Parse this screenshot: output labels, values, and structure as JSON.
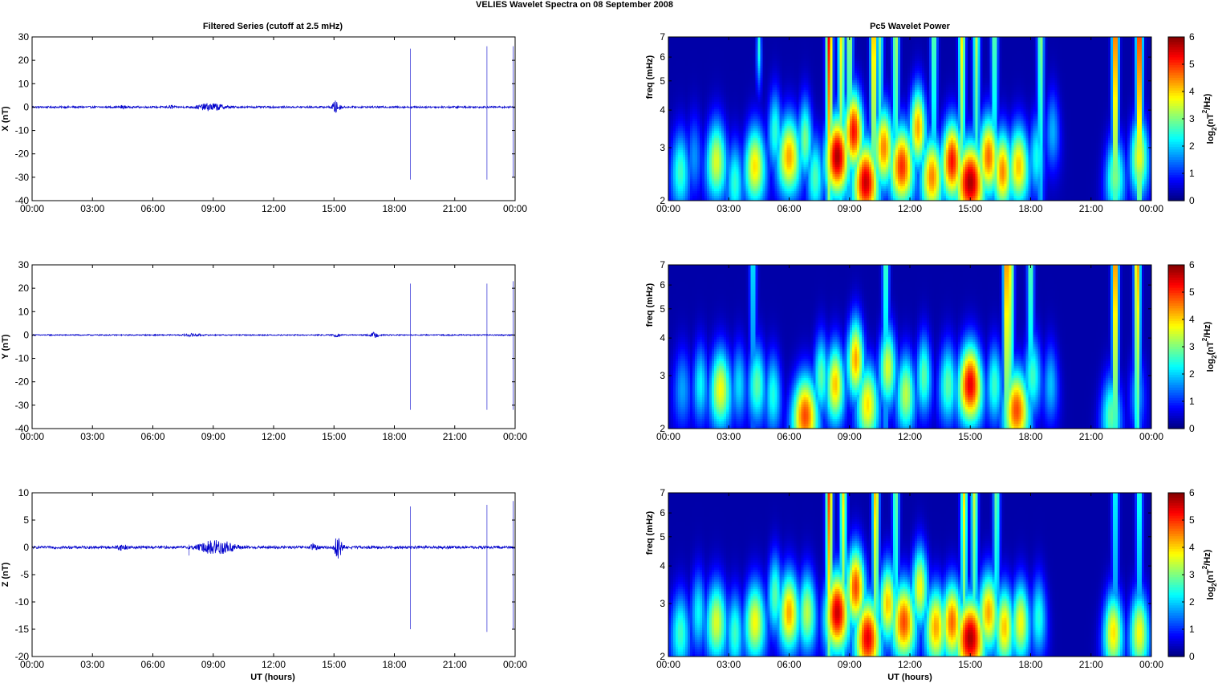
{
  "figure": {
    "title": "VELIES Wavelet Spectra on 08 September 2008",
    "left_column_title": "Filtered Series (cutoff at 2.5 mHz)",
    "right_column_title": "Pc5 Wavelet Power",
    "time_ticks": [
      "00:00",
      "03:00",
      "06:00",
      "09:00",
      "12:00",
      "15:00",
      "18:00",
      "21:00",
      "00:00"
    ],
    "x_axis_label": "UT (hours)",
    "freq_axis_label": "freq (mHz)",
    "colorbar_label_prefix": "log",
    "colorbar_label_sub": "2",
    "colorbar_label_mid": "(nT",
    "colorbar_label_sup": "2",
    "colorbar_label_suffix": "/Hz)"
  },
  "chart_data": [
    {
      "type": "line",
      "panel": "X time series",
      "ylabel": "X (nT)",
      "xlim_hours": [
        0,
        24
      ],
      "ylim": [
        -40,
        30
      ],
      "yticks": [
        30,
        20,
        10,
        0,
        -10,
        -20,
        -30,
        -40
      ],
      "line_color": "#0000cc",
      "baseline": 0,
      "noise_amplitude_nT": 0.4,
      "bursts": [
        {
          "center_hour": 4.5,
          "width_hours": 0.3,
          "amplitude_nT": 0.6
        },
        {
          "center_hour": 6.9,
          "width_hours": 0.3,
          "amplitude_nT": 0.6
        },
        {
          "center_hour": 8.9,
          "width_hours": 1.3,
          "amplitude_nT": 1.4
        },
        {
          "center_hour": 15.1,
          "width_hours": 0.4,
          "amplitude_nT": 2.5
        }
      ],
      "spikes": [
        {
          "hour": 18.8,
          "min": -31,
          "max": 25
        },
        {
          "hour": 22.6,
          "min": -31,
          "max": 26
        },
        {
          "hour": 23.9,
          "min": -30,
          "max": 26
        }
      ]
    },
    {
      "type": "line",
      "panel": "Y time series",
      "ylabel": "Y (nT)",
      "xlim_hours": [
        0,
        24
      ],
      "ylim": [
        -40,
        30
      ],
      "yticks": [
        30,
        20,
        10,
        0,
        -10,
        -20,
        -30,
        -40
      ],
      "line_color": "#0000cc",
      "baseline": 0,
      "noise_amplitude_nT": 0.25,
      "bursts": [
        {
          "center_hour": 8.0,
          "width_hours": 0.8,
          "amplitude_nT": 0.5
        },
        {
          "center_hour": 15.1,
          "width_hours": 0.3,
          "amplitude_nT": 0.8
        },
        {
          "center_hour": 17.0,
          "width_hours": 0.4,
          "amplitude_nT": 1.0
        }
      ],
      "spikes": [
        {
          "hour": 18.8,
          "min": -32,
          "max": 22
        },
        {
          "hour": 22.6,
          "min": -32,
          "max": 22
        },
        {
          "hour": 23.9,
          "min": -32,
          "max": 23
        }
      ]
    },
    {
      "type": "line",
      "panel": "Z time series",
      "ylabel": "Z (nT)",
      "xlim_hours": [
        0,
        24
      ],
      "ylim": [
        -20,
        10
      ],
      "yticks": [
        10,
        5,
        0,
        -5,
        -10,
        -15,
        -20
      ],
      "line_color": "#0000cc",
      "baseline": 0,
      "noise_amplitude_nT": 0.25,
      "bursts": [
        {
          "center_hour": 4.5,
          "width_hours": 0.5,
          "amplitude_nT": 0.4
        },
        {
          "center_hour": 9.2,
          "width_hours": 1.6,
          "amplitude_nT": 1.3
        },
        {
          "center_hour": 14.0,
          "width_hours": 0.3,
          "amplitude_nT": 0.6
        },
        {
          "center_hour": 15.2,
          "width_hours": 0.4,
          "amplitude_nT": 2.0
        }
      ],
      "spikes": [
        {
          "hour": 7.8,
          "min": -1.5,
          "max": 0.5
        },
        {
          "hour": 18.8,
          "min": -15,
          "max": 7.5
        },
        {
          "hour": 22.6,
          "min": -15.5,
          "max": 7.8
        },
        {
          "hour": 23.9,
          "min": -15,
          "max": 8.5
        }
      ]
    },
    {
      "type": "heatmap",
      "panel": "X wavelet power",
      "ylabel": "freq (mHz)",
      "ylim_mHz": [
        2,
        7
      ],
      "yscale": "log",
      "yticks": [
        2,
        3,
        4,
        5,
        6,
        7
      ],
      "xlim_hours": [
        0,
        24
      ],
      "colorbar": {
        "min": 0,
        "max": 6,
        "ticks": [
          0,
          1,
          2,
          3,
          4,
          5,
          6
        ],
        "colormap": "jet"
      },
      "blobs": [
        {
          "t": 0.6,
          "f": 2.5,
          "p": 2.6,
          "w": 0.35
        },
        {
          "t": 1.3,
          "f": 2.8,
          "p": 1.5,
          "w": 0.3
        },
        {
          "t": 2.4,
          "f": 2.7,
          "p": 3.6,
          "w": 0.4
        },
        {
          "t": 3.3,
          "f": 2.3,
          "p": 2.5,
          "w": 0.3
        },
        {
          "t": 4.3,
          "f": 2.6,
          "p": 4.0,
          "w": 0.4
        },
        {
          "t": 4.5,
          "f": 6.5,
          "p": 2.4,
          "w": 0.15
        },
        {
          "t": 5.3,
          "f": 3.4,
          "p": 2.5,
          "w": 0.3
        },
        {
          "t": 6.0,
          "f": 2.8,
          "p": 4.4,
          "w": 0.45
        },
        {
          "t": 6.8,
          "f": 3.2,
          "p": 3.0,
          "w": 0.3
        },
        {
          "t": 7.3,
          "f": 2.4,
          "p": 2.7,
          "w": 0.3
        },
        {
          "t": 8.4,
          "f": 2.8,
          "p": 6.0,
          "w": 0.45
        },
        {
          "t": 9.2,
          "f": 3.4,
          "p": 5.4,
          "w": 0.4
        },
        {
          "t": 9.8,
          "f": 2.3,
          "p": 5.8,
          "w": 0.45
        },
        {
          "t": 10.7,
          "f": 3.0,
          "p": 4.6,
          "w": 0.4
        },
        {
          "t": 11.6,
          "f": 2.6,
          "p": 5.2,
          "w": 0.45
        },
        {
          "t": 12.4,
          "f": 3.5,
          "p": 4.4,
          "w": 0.35
        },
        {
          "t": 13.1,
          "f": 2.4,
          "p": 4.6,
          "w": 0.4
        },
        {
          "t": 14.1,
          "f": 2.7,
          "p": 5.4,
          "w": 0.4
        },
        {
          "t": 15.0,
          "f": 2.3,
          "p": 6.0,
          "w": 0.5
        },
        {
          "t": 15.9,
          "f": 2.8,
          "p": 4.8,
          "w": 0.4
        },
        {
          "t": 16.6,
          "f": 2.5,
          "p": 4.6,
          "w": 0.35
        },
        {
          "t": 17.4,
          "f": 2.6,
          "p": 4.2,
          "w": 0.4
        },
        {
          "t": 18.3,
          "f": 2.8,
          "p": 2.3,
          "w": 0.3
        },
        {
          "t": 19.1,
          "f": 3.4,
          "p": 1.7,
          "w": 0.3
        },
        {
          "t": 22.2,
          "f": 2.4,
          "p": 3.0,
          "w": 0.35
        },
        {
          "t": 23.4,
          "f": 2.8,
          "p": 3.7,
          "w": 0.35
        }
      ],
      "streaks": [
        {
          "t": 8.0,
          "p": 5.6
        },
        {
          "t": 8.6,
          "p": 4.0
        },
        {
          "t": 9.0,
          "p": 3.4
        },
        {
          "t": 10.2,
          "p": 4.6
        },
        {
          "t": 10.5,
          "p": 3.0
        },
        {
          "t": 11.3,
          "p": 3.4
        },
        {
          "t": 13.2,
          "p": 3.0
        },
        {
          "t": 14.6,
          "p": 4.0
        },
        {
          "t": 15.3,
          "p": 3.4
        },
        {
          "t": 16.2,
          "p": 3.0
        },
        {
          "t": 18.5,
          "p": 3.2
        },
        {
          "t": 22.2,
          "p": 5.2
        },
        {
          "t": 23.4,
          "p": 5.6
        }
      ]
    },
    {
      "type": "heatmap",
      "panel": "Y wavelet power",
      "ylabel": "freq (mHz)",
      "ylim_mHz": [
        2,
        7
      ],
      "yscale": "log",
      "yticks": [
        2,
        3,
        4,
        5,
        6,
        7
      ],
      "xlim_hours": [
        0,
        24
      ],
      "colorbar": {
        "min": 0,
        "max": 6,
        "ticks": [
          0,
          1,
          2,
          3,
          4,
          5,
          6
        ],
        "colormap": "jet"
      },
      "blobs": [
        {
          "t": 0.7,
          "f": 2.7,
          "p": 1.6,
          "w": 0.35
        },
        {
          "t": 1.6,
          "f": 2.8,
          "p": 2.2,
          "w": 0.3
        },
        {
          "t": 2.6,
          "f": 2.7,
          "p": 3.8,
          "w": 0.4
        },
        {
          "t": 3.5,
          "f": 2.8,
          "p": 2.0,
          "w": 0.3
        },
        {
          "t": 4.4,
          "f": 2.8,
          "p": 2.8,
          "w": 0.35
        },
        {
          "t": 5.2,
          "f": 2.6,
          "p": 2.4,
          "w": 0.3
        },
        {
          "t": 6.8,
          "f": 2.2,
          "p": 5.0,
          "w": 0.45
        },
        {
          "t": 7.6,
          "f": 3.0,
          "p": 2.8,
          "w": 0.3
        },
        {
          "t": 8.3,
          "f": 2.8,
          "p": 4.2,
          "w": 0.35
        },
        {
          "t": 9.3,
          "f": 3.4,
          "p": 4.4,
          "w": 0.35
        },
        {
          "t": 9.9,
          "f": 2.4,
          "p": 4.0,
          "w": 0.4
        },
        {
          "t": 10.9,
          "f": 3.2,
          "p": 3.6,
          "w": 0.35
        },
        {
          "t": 11.8,
          "f": 2.6,
          "p": 3.4,
          "w": 0.35
        },
        {
          "t": 12.7,
          "f": 3.0,
          "p": 2.8,
          "w": 0.3
        },
        {
          "t": 13.9,
          "f": 2.8,
          "p": 2.8,
          "w": 0.35
        },
        {
          "t": 15.0,
          "f": 2.8,
          "p": 5.6,
          "w": 0.45
        },
        {
          "t": 16.2,
          "f": 2.8,
          "p": 2.6,
          "w": 0.3
        },
        {
          "t": 17.3,
          "f": 2.3,
          "p": 5.0,
          "w": 0.45
        },
        {
          "t": 18.1,
          "f": 3.0,
          "p": 2.6,
          "w": 0.35
        },
        {
          "t": 19.0,
          "f": 2.8,
          "p": 1.8,
          "w": 0.3
        },
        {
          "t": 22.0,
          "f": 2.2,
          "p": 2.8,
          "w": 0.35
        },
        {
          "t": 23.3,
          "f": 2.6,
          "p": 1.6,
          "w": 0.3
        }
      ],
      "streaks": [
        {
          "t": 4.2,
          "p": 2.2
        },
        {
          "t": 10.8,
          "p": 2.8
        },
        {
          "t": 16.8,
          "p": 5.0
        },
        {
          "t": 17.0,
          "p": 4.0
        },
        {
          "t": 18.0,
          "p": 3.0
        },
        {
          "t": 22.2,
          "p": 5.0
        },
        {
          "t": 23.3,
          "p": 4.6
        }
      ]
    },
    {
      "type": "heatmap",
      "panel": "Z wavelet power",
      "ylabel": "freq (mHz)",
      "ylim_mHz": [
        2,
        7
      ],
      "yscale": "log",
      "yticks": [
        2,
        3,
        4,
        5,
        6,
        7
      ],
      "xlim_hours": [
        0,
        24
      ],
      "colorbar": {
        "min": 0,
        "max": 6,
        "ticks": [
          0,
          1,
          2,
          3,
          4,
          5,
          6
        ],
        "colormap": "jet"
      },
      "blobs": [
        {
          "t": 0.6,
          "f": 2.4,
          "p": 2.6,
          "w": 0.35
        },
        {
          "t": 1.5,
          "f": 2.8,
          "p": 2.2,
          "w": 0.3
        },
        {
          "t": 2.4,
          "f": 2.6,
          "p": 3.6,
          "w": 0.4
        },
        {
          "t": 3.3,
          "f": 2.4,
          "p": 2.6,
          "w": 0.3
        },
        {
          "t": 4.3,
          "f": 2.6,
          "p": 3.8,
          "w": 0.4
        },
        {
          "t": 5.3,
          "f": 3.2,
          "p": 2.8,
          "w": 0.3
        },
        {
          "t": 6.0,
          "f": 2.8,
          "p": 4.4,
          "w": 0.4
        },
        {
          "t": 6.9,
          "f": 2.8,
          "p": 3.4,
          "w": 0.35
        },
        {
          "t": 8.4,
          "f": 2.8,
          "p": 5.8,
          "w": 0.45
        },
        {
          "t": 9.3,
          "f": 3.4,
          "p": 5.0,
          "w": 0.4
        },
        {
          "t": 9.9,
          "f": 2.3,
          "p": 5.6,
          "w": 0.45
        },
        {
          "t": 10.9,
          "f": 3.0,
          "p": 4.2,
          "w": 0.35
        },
        {
          "t": 11.7,
          "f": 2.6,
          "p": 5.0,
          "w": 0.45
        },
        {
          "t": 12.5,
          "f": 3.4,
          "p": 3.8,
          "w": 0.35
        },
        {
          "t": 13.3,
          "f": 2.5,
          "p": 4.4,
          "w": 0.4
        },
        {
          "t": 14.1,
          "f": 2.6,
          "p": 4.8,
          "w": 0.4
        },
        {
          "t": 15.0,
          "f": 2.3,
          "p": 6.0,
          "w": 0.5
        },
        {
          "t": 15.9,
          "f": 2.8,
          "p": 4.4,
          "w": 0.4
        },
        {
          "t": 16.7,
          "f": 2.5,
          "p": 4.2,
          "w": 0.35
        },
        {
          "t": 17.5,
          "f": 2.6,
          "p": 3.8,
          "w": 0.35
        },
        {
          "t": 18.4,
          "f": 2.7,
          "p": 2.4,
          "w": 0.3
        },
        {
          "t": 22.1,
          "f": 2.4,
          "p": 4.0,
          "w": 0.35
        },
        {
          "t": 23.4,
          "f": 2.4,
          "p": 3.8,
          "w": 0.35
        }
      ],
      "streaks": [
        {
          "t": 8.0,
          "p": 5.2
        },
        {
          "t": 8.7,
          "p": 4.0
        },
        {
          "t": 10.3,
          "p": 4.4
        },
        {
          "t": 11.3,
          "p": 3.0
        },
        {
          "t": 14.7,
          "p": 4.0
        },
        {
          "t": 15.2,
          "p": 3.6
        },
        {
          "t": 16.3,
          "p": 3.0
        },
        {
          "t": 22.2,
          "p": 2.4
        },
        {
          "t": 23.4,
          "p": 2.6
        }
      ]
    }
  ]
}
